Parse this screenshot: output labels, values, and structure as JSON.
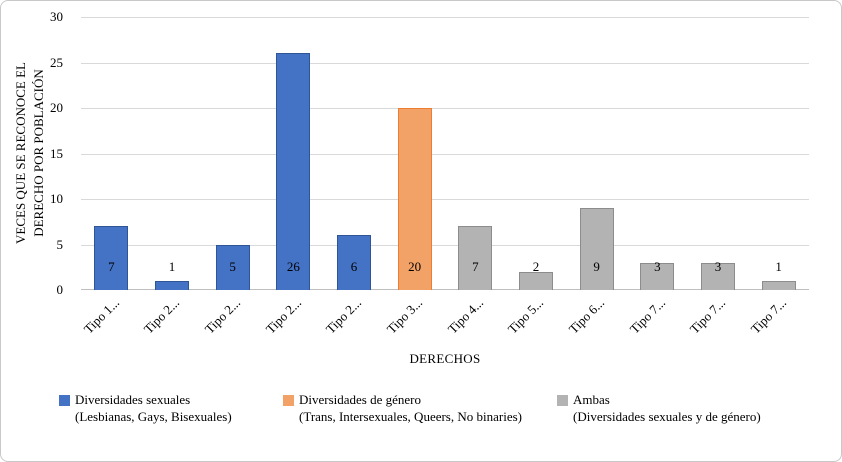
{
  "chart": {
    "background": "#ffffff",
    "frame_border_color": "#c8c8c8"
  },
  "chart_data": {
    "type": "bar",
    "title": "",
    "xlabel": "DERECHOS",
    "ylabel": "VECES QUE SE RECONOCE EL DERECHO POR POBLACIÓN",
    "ylabel_lines": [
      "VECES QUE SE RECONOCE EL",
      "DERECHO POR POBLACIÓN"
    ],
    "ylim": [
      0,
      30
    ],
    "yticks": [
      0,
      5,
      10,
      15,
      20,
      25,
      30
    ],
    "grid": true,
    "gridline_color": "#d9d9d9",
    "axis_color": "#bfbfbf",
    "categories": [
      "Tipo 1...",
      "Tipo 2...",
      "Tipo 2...",
      "Tipo 2...",
      "Tipo 2...",
      "Tipo 3...",
      "Tipo 4...",
      "Tipo 5...",
      "Tipo 6...",
      "Tipo 7...",
      "Tipo 7...",
      "Tipo 7..."
    ],
    "values": [
      7,
      1,
      5,
      26,
      6,
      20,
      7,
      2,
      9,
      3,
      3,
      1
    ],
    "series_of_bar": [
      "sexuales",
      "sexuales",
      "sexuales",
      "sexuales",
      "sexuales",
      "genero",
      "ambas",
      "ambas",
      "ambas",
      "ambas",
      "ambas",
      "ambas"
    ],
    "series_colors": {
      "sexuales": {
        "fill": "#4472c4",
        "border": "#2f5597"
      },
      "genero": {
        "fill": "#f2a266",
        "border": "#ed7d31"
      },
      "ambas": {
        "fill": "#b3b3b3",
        "border": "#8c8c8c"
      }
    },
    "legend_position": "bottom",
    "legend": [
      {
        "key": "sexuales",
        "label": "Diversidades sexuales",
        "sublabel": "(Lesbianas, Gays, Bisexuales)"
      },
      {
        "key": "genero",
        "label": "Diversidades de género",
        "sublabel": "(Trans, Intersexuales, Queers, No binaries)"
      },
      {
        "key": "ambas",
        "label": "Ambas",
        "sublabel": "(Diversidades sexuales y de género)"
      }
    ]
  }
}
